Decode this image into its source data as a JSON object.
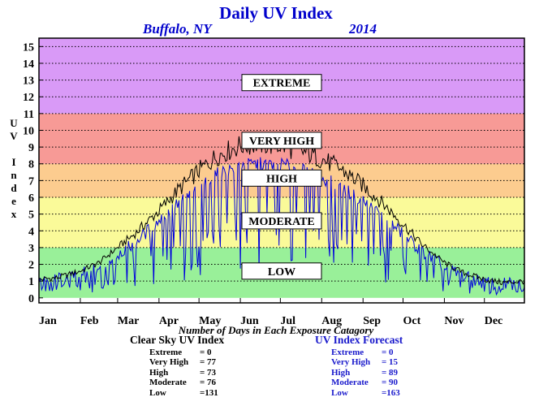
{
  "header": {
    "title": "Daily UV Index",
    "city": "Buffalo, NY",
    "year": "2014"
  },
  "axis_label_letters": [
    "U",
    "V",
    "",
    "I",
    "n",
    "d",
    "e",
    "x"
  ],
  "x_note": "Number of Days in Each Exposure Catagory",
  "clear_sky": {
    "header": "Clear Sky UV Index",
    "rows": [
      {
        "label": "Extreme",
        "value": "=    0"
      },
      {
        "label": "Very High",
        "value": "=  77"
      },
      {
        "label": "High",
        "value": "=  73"
      },
      {
        "label": "Moderate",
        "value": "=  76"
      },
      {
        "label": "Low",
        "value": "=131"
      }
    ]
  },
  "forecast": {
    "header": "UV Index Forecast",
    "rows": [
      {
        "label": "Extreme",
        "value": "=    0"
      },
      {
        "label": "Very High",
        "value": "=  15"
      },
      {
        "label": "High",
        "value": "=  89"
      },
      {
        "label": "Moderate",
        "value": "=  90"
      },
      {
        "label": "Low",
        "value": "=163"
      }
    ]
  },
  "chart_data": {
    "type": "line",
    "title": "Daily UV Index",
    "ylabel": "UV Index",
    "xlabel": "",
    "ylim": [
      0,
      15
    ],
    "yticks": [
      0,
      1,
      2,
      3,
      4,
      5,
      6,
      7,
      8,
      9,
      10,
      11,
      12,
      13,
      14,
      15
    ],
    "month_labels": [
      "Jan",
      "Feb",
      "Mar",
      "Apr",
      "May",
      "Jun",
      "Jul",
      "Aug",
      "Sep",
      "Oct",
      "Nov",
      "Dec"
    ],
    "grid": true,
    "bands": [
      {
        "name": "LOW",
        "from": 0,
        "to": 3,
        "color": "#99f099"
      },
      {
        "name": "MODERATE",
        "from": 3,
        "to": 6,
        "color": "#fafa99"
      },
      {
        "name": "HIGH",
        "from": 6,
        "to": 8,
        "color": "#fccc8f"
      },
      {
        "name": "VERY HIGH",
        "from": 8,
        "to": 11,
        "color": "#f79a96"
      },
      {
        "name": "EXTREME",
        "from": 11,
        "to": 15.5,
        "color": "#d99af7"
      }
    ],
    "series": [
      {
        "name": "Clear Sky UV Index",
        "color": "#000000",
        "x": [
          1,
          15,
          32,
          46,
          60,
          74,
          91,
          105,
          121,
          135,
          152,
          166,
          182,
          196,
          213,
          227,
          244,
          258,
          274,
          288,
          305,
          319,
          335,
          349,
          365
        ],
        "values": [
          1.1,
          1.2,
          1.6,
          2.1,
          3.0,
          3.9,
          5.2,
          6.4,
          7.6,
          8.5,
          9.1,
          9.2,
          9.1,
          8.8,
          8.3,
          7.7,
          6.7,
          5.7,
          4.4,
          3.2,
          2.1,
          1.5,
          1.1,
          0.9,
          1.0
        ]
      },
      {
        "name": "UV Index Forecast",
        "color": "#0000dd",
        "x": [
          1,
          15,
          32,
          46,
          60,
          74,
          91,
          105,
          121,
          135,
          152,
          166,
          182,
          196,
          213,
          227,
          244,
          258,
          274,
          288,
          305,
          319,
          335,
          349,
          365
        ],
        "values": [
          1.0,
          1.1,
          1.4,
          1.8,
          2.6,
          3.4,
          4.6,
          5.6,
          6.6,
          7.4,
          7.9,
          8.0,
          8.0,
          7.7,
          7.2,
          6.6,
          5.8,
          4.9,
          3.8,
          2.8,
          1.8,
          1.3,
          0.9,
          0.8,
          0.9
        ]
      }
    ]
  }
}
